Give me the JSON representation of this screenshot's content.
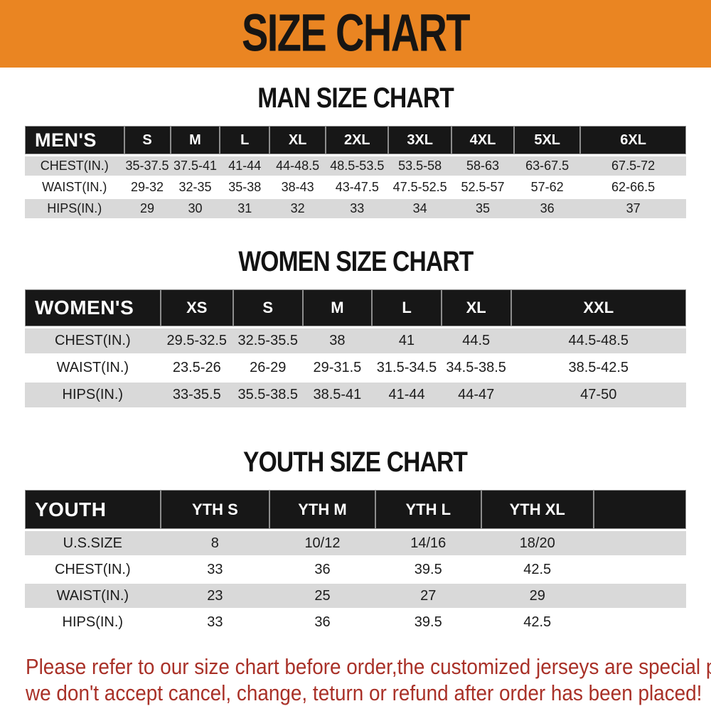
{
  "banner": {
    "title": "SIZE CHART"
  },
  "colors": {
    "banner_bg": "#ea8522",
    "table_header_bg": "#171717",
    "table_header_text": "#ffffff",
    "row_alt_bg": "#d9d9d9",
    "footer_text": "#a93128"
  },
  "sections": [
    {
      "heading": "MAN SIZE CHART",
      "header_label": "MEN'S",
      "columns": [
        "S",
        "M",
        "L",
        "XL",
        "2XL",
        "3XL",
        "4XL",
        "5XL",
        "6XL"
      ],
      "rows": [
        {
          "label": "CHEST(IN.)",
          "values": [
            "35-37.5",
            "37.5-41",
            "41-44",
            "44-48.5",
            "48.5-53.5",
            "53.5-58",
            "58-63",
            "63-67.5",
            "67.5-72"
          ]
        },
        {
          "label": "WAIST(IN.)",
          "values": [
            "29-32",
            "32-35",
            "35-38",
            "38-43",
            "43-47.5",
            "47.5-52.5",
            "52.5-57",
            "57-62",
            "62-66.5"
          ]
        },
        {
          "label": "HIPS(IN.)",
          "values": [
            "29",
            "30",
            "31",
            "32",
            "33",
            "34",
            "35",
            "36",
            "37"
          ]
        }
      ]
    },
    {
      "heading": "WOMEN SIZE CHART",
      "header_label": "WOMEN'S",
      "columns": [
        "XS",
        "S",
        "M",
        "L",
        "XL",
        "XXL"
      ],
      "rows": [
        {
          "label": "CHEST(IN.)",
          "values": [
            "29.5-32.5",
            "32.5-35.5",
            "38",
            "41",
            "44.5",
            "44.5-48.5"
          ]
        },
        {
          "label": "WAIST(IN.)",
          "values": [
            "23.5-26",
            "26-29",
            "29-31.5",
            "31.5-34.5",
            "34.5-38.5",
            "38.5-42.5"
          ]
        },
        {
          "label": "HIPS(IN.)",
          "values": [
            "33-35.5",
            "35.5-38.5",
            "38.5-41",
            "41-44",
            "44-47",
            "47-50"
          ]
        }
      ]
    },
    {
      "heading": "YOUTH SIZE CHART",
      "header_label": "YOUTH",
      "columns": [
        "YTH S",
        "YTH M",
        "YTH L",
        "YTH XL"
      ],
      "rows": [
        {
          "label": "U.S.SIZE",
          "values": [
            "8",
            "10/12",
            "14/16",
            "18/20"
          ]
        },
        {
          "label": "CHEST(IN.)",
          "values": [
            "33",
            "36",
            "39.5",
            "42.5"
          ]
        },
        {
          "label": "WAIST(IN.)",
          "values": [
            "23",
            "25",
            "27",
            "29"
          ]
        },
        {
          "label": "HIPS(IN.)",
          "values": [
            "33",
            "36",
            "39.5",
            "42.5"
          ]
        }
      ]
    }
  ],
  "footer": {
    "line1": "Please refer to our size chart before order,the customized jerseys are special products,",
    "line2": "we don't accept cancel, change, teturn or refund after order has been placed!"
  }
}
